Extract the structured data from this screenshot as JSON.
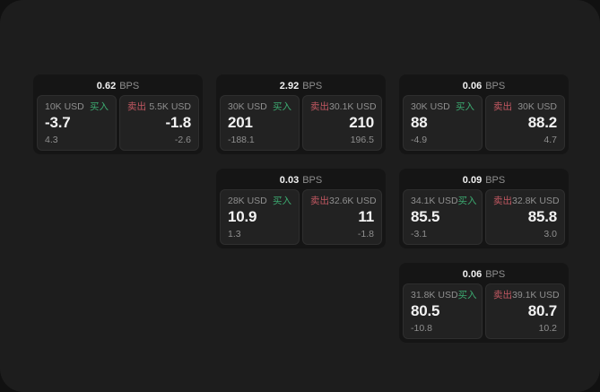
{
  "theme": {
    "outer_bg": "#111111",
    "surface_bg": "#1d1d1d",
    "card_bg": "#151515",
    "tile_bg": "#222222",
    "tile_border": "#2e2e2e",
    "text_primary": "#f2f2f2",
    "text_muted": "#8f8f8f",
    "buy_color": "#3cab71",
    "sell_color": "#c25862"
  },
  "labels": {
    "bps_suffix": "BPS",
    "buy": "买入",
    "sell": "卖出"
  },
  "cards": [
    {
      "bps": "0.62",
      "col": 1,
      "row": 1,
      "buy": {
        "amount": "10K USD",
        "price": "-3.7",
        "delta": "4.3"
      },
      "sell": {
        "amount": "5.5K USD",
        "price": "-1.8",
        "delta": "-2.6"
      }
    },
    {
      "bps": "2.92",
      "col": 2,
      "row": 1,
      "buy": {
        "amount": "30K USD",
        "price": "201",
        "delta": "-188.1"
      },
      "sell": {
        "amount": "30.1K USD",
        "price": "210",
        "delta": "196.5"
      }
    },
    {
      "bps": "0.06",
      "col": 3,
      "row": 1,
      "buy": {
        "amount": "30K USD",
        "price": "88",
        "delta": "-4.9"
      },
      "sell": {
        "amount": "30K USD",
        "price": "88.2",
        "delta": "4.7"
      }
    },
    {
      "bps": "0.03",
      "col": 2,
      "row": 2,
      "buy": {
        "amount": "28K USD",
        "price": "10.9",
        "delta": "1.3"
      },
      "sell": {
        "amount": "32.6K USD",
        "price": "11",
        "delta": "-1.8"
      }
    },
    {
      "bps": "0.09",
      "col": 3,
      "row": 2,
      "buy": {
        "amount": "34.1K USD",
        "price": "85.5",
        "delta": "-3.1"
      },
      "sell": {
        "amount": "32.8K USD",
        "price": "85.8",
        "delta": "3.0"
      }
    },
    {
      "bps": "0.06",
      "col": 3,
      "row": 3,
      "buy": {
        "amount": "31.8K USD",
        "price": "80.5",
        "delta": "-10.8"
      },
      "sell": {
        "amount": "39.1K USD",
        "price": "80.7",
        "delta": "10.2"
      }
    }
  ]
}
